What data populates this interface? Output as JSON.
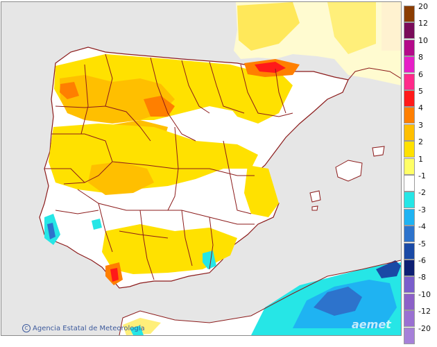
{
  "credit": {
    "symbol": "C",
    "text": "Agencia Estatal de Meteorología"
  },
  "watermark": "aemet",
  "legend": {
    "classes": [
      {
        "label": "20",
        "color": "#8b3d00"
      },
      {
        "label": "12",
        "color": "#7a0c5a"
      },
      {
        "label": "10",
        "color": "#b40a8a"
      },
      {
        "label": "8",
        "color": "#e61fc7"
      },
      {
        "label": "6",
        "color": "#ff2a8a"
      },
      {
        "label": "5",
        "color": "#ff1a1a"
      },
      {
        "label": "4",
        "color": "#ff7f00"
      },
      {
        "label": "3",
        "color": "#ffbf00"
      },
      {
        "label": "2",
        "color": "#ffe100"
      },
      {
        "label": "1",
        "color": "#ffff66"
      },
      {
        "label": "-1",
        "color": "#ffffff"
      },
      {
        "label": "-2",
        "color": "#26e6e6"
      },
      {
        "label": "-3",
        "color": "#1fb3f2"
      },
      {
        "label": "-4",
        "color": "#2d73cc"
      },
      {
        "label": "-5",
        "color": "#1a4aa6"
      },
      {
        "label": "-6",
        "color": "#0d1f73"
      },
      {
        "label": "-8",
        "color": "#7a5ecc"
      },
      {
        "label": "-10",
        "color": "#8c60c8"
      },
      {
        "label": "-12",
        "color": "#9a70d2"
      },
      {
        "label": "-20",
        "color": "#a680d9"
      }
    ]
  },
  "map_colors": {
    "sea": "#e6e6e6",
    "land": "#ffffff",
    "borders": "#8b1a1a",
    "africa_land": "#ffffff",
    "france_tone": "#fff8b0",
    "cold_africa": "#1fb3f2"
  }
}
